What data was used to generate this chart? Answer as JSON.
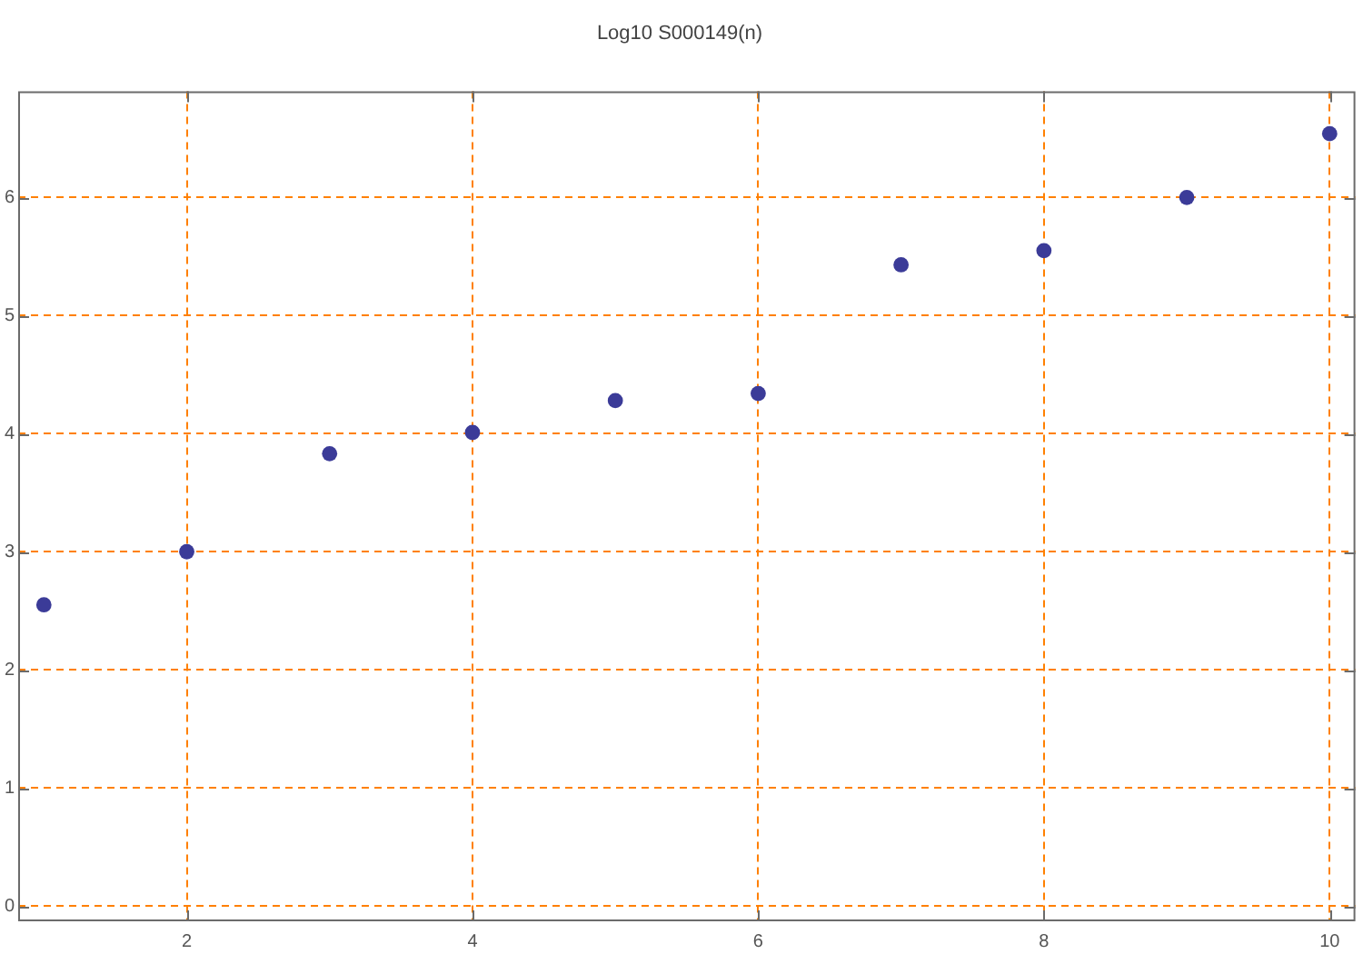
{
  "chart_data": {
    "type": "scatter",
    "title": "Log10 S000149(n)",
    "x": [
      1,
      2,
      3,
      4,
      5,
      6,
      7,
      8,
      9,
      10
    ],
    "values": [
      2.55,
      3.0,
      3.83,
      4.01,
      4.28,
      4.34,
      5.43,
      5.55,
      6.0,
      6.54
    ],
    "color": "#3b3b98",
    "marker": "circle",
    "xlim": [
      0.82,
      10.18
    ],
    "ylim": [
      -0.13,
      6.9
    ],
    "xticks": [
      2,
      4,
      6,
      8,
      10
    ],
    "yticks": [
      0,
      1,
      2,
      3,
      4,
      5,
      6
    ],
    "grid": true
  }
}
